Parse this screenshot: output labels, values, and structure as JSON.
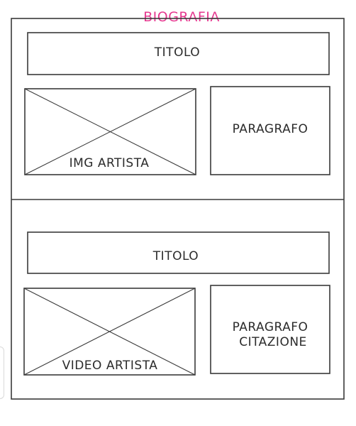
{
  "page_title": "BIOGRAFIA",
  "section1": {
    "title": "TITOLO",
    "image_label": "IMG ARTISTA",
    "paragraph_label": "PARAGRAFO"
  },
  "section2": {
    "title": "TITOLO",
    "video_label": "VIDEO ARTISTA",
    "paragraph_line1": "PARAGRAFO",
    "paragraph_line2": "CITAZIONE"
  },
  "colors": {
    "stroke": "#3a3a3a",
    "title_accent": "#e5398f",
    "background": "#ffffff"
  }
}
